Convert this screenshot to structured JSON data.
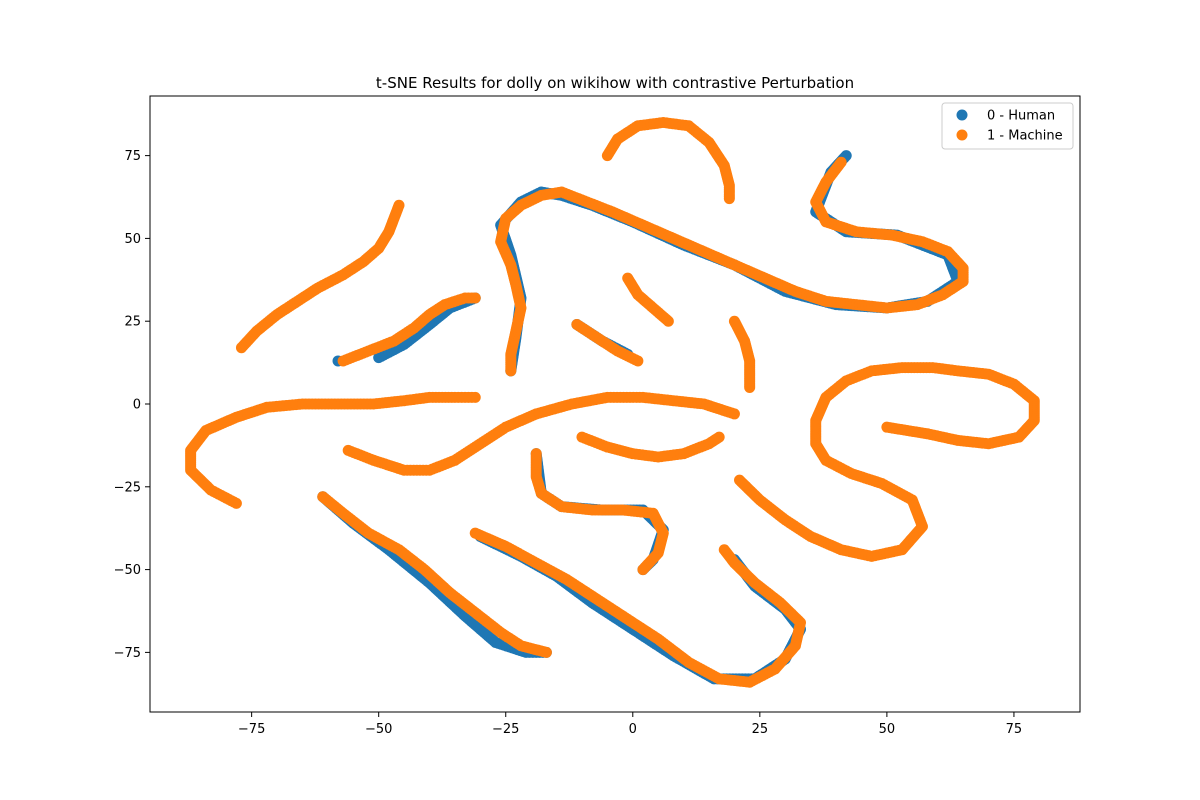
{
  "chart_data": {
    "type": "scatter",
    "title": "t-SNE Results for dolly on wikihow with contrastive Perturbation",
    "xlabel": "",
    "ylabel": "",
    "xlim": [
      -95,
      88
    ],
    "ylim": [
      -93,
      93
    ],
    "x_ticks": [
      -75,
      -50,
      -25,
      0,
      25,
      50,
      75
    ],
    "y_ticks": [
      -75,
      -50,
      -25,
      0,
      25,
      50,
      75
    ],
    "x_tick_labels": [
      "−75",
      "−50",
      "−25",
      "0",
      "25",
      "50",
      "75"
    ],
    "y_tick_labels": [
      "−75",
      "−50",
      "−25",
      "0",
      "25",
      "50",
      "75"
    ],
    "grid": false,
    "legend_position": "top-right",
    "series": [
      {
        "name": "0 - Human",
        "color": "#1f77b4",
        "points": [
          [
            -50,
            14
          ],
          [
            -45,
            18
          ],
          [
            -40,
            24
          ],
          [
            -36,
            29
          ],
          [
            -31,
            32
          ],
          [
            -24,
            10
          ],
          [
            -23,
            20
          ],
          [
            -22,
            32
          ],
          [
            -24,
            45
          ],
          [
            -26,
            54
          ],
          [
            -22,
            61
          ],
          [
            -18,
            64
          ],
          [
            -14,
            63
          ],
          [
            -8,
            60
          ],
          [
            0,
            55
          ],
          [
            10,
            48
          ],
          [
            20,
            42
          ],
          [
            30,
            34
          ],
          [
            40,
            30
          ],
          [
            50,
            29
          ],
          [
            58,
            31
          ],
          [
            64,
            37
          ],
          [
            62,
            45
          ],
          [
            52,
            51
          ],
          [
            42,
            52
          ],
          [
            36,
            58
          ],
          [
            39,
            70
          ],
          [
            42,
            75
          ],
          [
            -11,
            24
          ],
          [
            -6,
            19
          ],
          [
            -1,
            15
          ],
          [
            -58,
            13
          ],
          [
            -19,
            -15
          ],
          [
            -18,
            -27
          ],
          [
            -14,
            -31
          ],
          [
            -6,
            -32
          ],
          [
            2,
            -32
          ],
          [
            6,
            -38
          ],
          [
            4,
            -47
          ],
          [
            2,
            -50
          ],
          [
            -61,
            -28
          ],
          [
            -55,
            -36
          ],
          [
            -48,
            -44
          ],
          [
            -40,
            -54
          ],
          [
            -33,
            -64
          ],
          [
            -27,
            -72
          ],
          [
            -21,
            -75
          ],
          [
            -17,
            -75
          ],
          [
            -30,
            -40
          ],
          [
            -22,
            -46
          ],
          [
            -15,
            -52
          ],
          [
            -8,
            -60
          ],
          [
            0,
            -68
          ],
          [
            8,
            -76
          ],
          [
            16,
            -83
          ],
          [
            24,
            -83
          ],
          [
            30,
            -77
          ],
          [
            33,
            -68
          ],
          [
            30,
            -62
          ],
          [
            24,
            -55
          ],
          [
            20,
            -47
          ]
        ]
      },
      {
        "name": "1 - Machine",
        "color": "#ff7f0e",
        "points": [
          [
            -77,
            17
          ],
          [
            -74,
            22
          ],
          [
            -70,
            27
          ],
          [
            -66,
            31
          ],
          [
            -62,
            35
          ],
          [
            -57,
            39
          ],
          [
            -53,
            43
          ],
          [
            -50,
            47
          ],
          [
            -48,
            52
          ],
          [
            -47,
            56
          ],
          [
            -46,
            60
          ],
          [
            -57,
            13
          ],
          [
            -52,
            16
          ],
          [
            -47,
            19
          ],
          [
            -43,
            23
          ],
          [
            -40,
            27
          ],
          [
            -37,
            30
          ],
          [
            -33,
            32
          ],
          [
            -31,
            32
          ],
          [
            -24,
            10
          ],
          [
            -24,
            15
          ],
          [
            -23,
            22
          ],
          [
            -22,
            29
          ],
          [
            -23,
            36
          ],
          [
            -24,
            42
          ],
          [
            -26,
            49
          ],
          [
            -25,
            56
          ],
          [
            -22,
            60
          ],
          [
            -18,
            63
          ],
          [
            -14,
            64
          ],
          [
            -9,
            61
          ],
          [
            -4,
            58
          ],
          [
            2,
            54
          ],
          [
            8,
            50
          ],
          [
            14,
            46
          ],
          [
            20,
            42
          ],
          [
            26,
            38
          ],
          [
            32,
            34
          ],
          [
            38,
            31
          ],
          [
            44,
            30
          ],
          [
            50,
            29
          ],
          [
            56,
            30
          ],
          [
            61,
            33
          ],
          [
            65,
            37
          ],
          [
            65,
            41
          ],
          [
            62,
            46
          ],
          [
            57,
            49
          ],
          [
            51,
            51
          ],
          [
            44,
            52
          ],
          [
            38,
            55
          ],
          [
            36,
            61
          ],
          [
            38,
            67
          ],
          [
            41,
            73
          ],
          [
            -5,
            75
          ],
          [
            -3,
            80
          ],
          [
            1,
            84
          ],
          [
            6,
            85
          ],
          [
            11,
            84
          ],
          [
            15,
            79
          ],
          [
            18,
            72
          ],
          [
            19,
            66
          ],
          [
            19,
            62
          ],
          [
            -1,
            38
          ],
          [
            1,
            33
          ],
          [
            4,
            29
          ],
          [
            7,
            25
          ],
          [
            -11,
            24
          ],
          [
            -7,
            20
          ],
          [
            -3,
            16
          ],
          [
            1,
            13
          ],
          [
            20,
            25
          ],
          [
            22,
            19
          ],
          [
            23,
            13
          ],
          [
            23,
            8
          ],
          [
            23,
            5
          ],
          [
            -78,
            -30
          ],
          [
            -83,
            -26
          ],
          [
            -87,
            -20
          ],
          [
            -87,
            -14
          ],
          [
            -84,
            -8
          ],
          [
            -78,
            -4
          ],
          [
            -72,
            -1
          ],
          [
            -65,
            0
          ],
          [
            -58,
            0
          ],
          [
            -51,
            0
          ],
          [
            -45,
            1
          ],
          [
            -40,
            2
          ],
          [
            -35,
            2
          ],
          [
            -31,
            2
          ],
          [
            -56,
            -14
          ],
          [
            -51,
            -17
          ],
          [
            -45,
            -20
          ],
          [
            -40,
            -20
          ],
          [
            -35,
            -17
          ],
          [
            -30,
            -12
          ],
          [
            -25,
            -7
          ],
          [
            -19,
            -3
          ],
          [
            -12,
            0
          ],
          [
            -5,
            2
          ],
          [
            2,
            2
          ],
          [
            8,
            1
          ],
          [
            14,
            0
          ],
          [
            20,
            -3
          ],
          [
            -10,
            -10
          ],
          [
            -5,
            -13
          ],
          [
            0,
            -15
          ],
          [
            5,
            -16
          ],
          [
            10,
            -15
          ],
          [
            15,
            -12
          ],
          [
            17,
            -10
          ],
          [
            -19,
            -15
          ],
          [
            -19,
            -22
          ],
          [
            -18,
            -27
          ],
          [
            -14,
            -31
          ],
          [
            -8,
            -32
          ],
          [
            -2,
            -32
          ],
          [
            4,
            -33
          ],
          [
            6,
            -39
          ],
          [
            5,
            -45
          ],
          [
            2,
            -50
          ],
          [
            -61,
            -28
          ],
          [
            -57,
            -33
          ],
          [
            -52,
            -39
          ],
          [
            -46,
            -44
          ],
          [
            -41,
            -50
          ],
          [
            -36,
            -57
          ],
          [
            -31,
            -63
          ],
          [
            -26,
            -69
          ],
          [
            -22,
            -73
          ],
          [
            -17,
            -75
          ],
          [
            -31,
            -39
          ],
          [
            -25,
            -43
          ],
          [
            -19,
            -48
          ],
          [
            -13,
            -53
          ],
          [
            -7,
            -59
          ],
          [
            -1,
            -65
          ],
          [
            5,
            -71
          ],
          [
            11,
            -78
          ],
          [
            17,
            -83
          ],
          [
            23,
            -84
          ],
          [
            28,
            -80
          ],
          [
            32,
            -73
          ],
          [
            33,
            -66
          ],
          [
            29,
            -60
          ],
          [
            24,
            -54
          ],
          [
            20,
            -48
          ],
          [
            18,
            -44
          ],
          [
            21,
            -23
          ],
          [
            25,
            -29
          ],
          [
            30,
            -35
          ],
          [
            35,
            -40
          ],
          [
            41,
            -44
          ],
          [
            47,
            -46
          ],
          [
            53,
            -44
          ],
          [
            57,
            -37
          ],
          [
            55,
            -29
          ],
          [
            49,
            -24
          ],
          [
            43,
            -21
          ],
          [
            38,
            -17
          ],
          [
            36,
            -12
          ],
          [
            36,
            -5
          ],
          [
            38,
            2
          ],
          [
            42,
            7
          ],
          [
            47,
            10
          ],
          [
            53,
            11
          ],
          [
            59,
            11
          ],
          [
            64,
            10
          ],
          [
            70,
            9
          ],
          [
            75,
            6
          ],
          [
            79,
            1
          ],
          [
            79,
            -5
          ],
          [
            76,
            -10
          ],
          [
            70,
            -12
          ],
          [
            64,
            -11
          ],
          [
            58,
            -9
          ],
          [
            54,
            -8
          ],
          [
            50,
            -7
          ]
        ]
      }
    ]
  }
}
